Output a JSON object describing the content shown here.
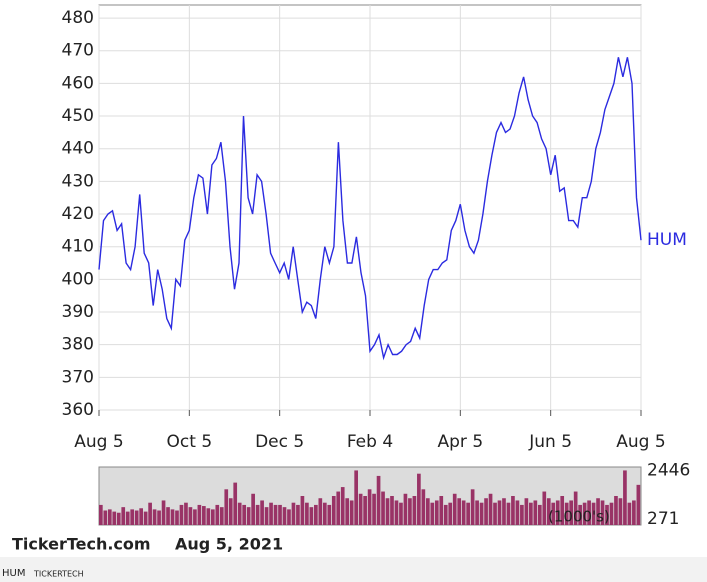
{
  "chart_data": [
    {
      "type": "line",
      "series": [
        {
          "name": "HUM",
          "color": "#2b2be0",
          "values": [
            403,
            418,
            420,
            421,
            415,
            417,
            405,
            403,
            410,
            426,
            408,
            405,
            392,
            403,
            397,
            388,
            385,
            400,
            398,
            412,
            415,
            425,
            432,
            431,
            420,
            435,
            437,
            442,
            430,
            410,
            397,
            405,
            450,
            425,
            420,
            432,
            430,
            420,
            408,
            405,
            402,
            405,
            400,
            410,
            400,
            390,
            393,
            392,
            388,
            400,
            410,
            405,
            410,
            442,
            418,
            405,
            405,
            413,
            402,
            395,
            378,
            380,
            383,
            376,
            380,
            377,
            377,
            378,
            380,
            381,
            385,
            382,
            392,
            400,
            403,
            403,
            405,
            406,
            415,
            418,
            423,
            415,
            410,
            408,
            412,
            420,
            430,
            438,
            445,
            448,
            445,
            446,
            450,
            457,
            462,
            455,
            450,
            448,
            443,
            440,
            432,
            438,
            427,
            428,
            418,
            418,
            416,
            425,
            425,
            430,
            440,
            445,
            452,
            456,
            460,
            468,
            462,
            468,
            460,
            425,
            412
          ]
        }
      ],
      "xlim": [
        0,
        120
      ],
      "xticks": [
        {
          "value": 0,
          "label": "Aug 5"
        },
        {
          "value": 20,
          "label": "Oct 5"
        },
        {
          "value": 40,
          "label": "Dec 5"
        },
        {
          "value": 60,
          "label": "Feb 4"
        },
        {
          "value": 80,
          "label": "Apr 5"
        },
        {
          "value": 100,
          "label": "Jun 5"
        },
        {
          "value": 120,
          "label": "Aug 5"
        }
      ],
      "ylim": [
        360,
        484
      ],
      "yticks": [
        360,
        370,
        380,
        390,
        400,
        410,
        420,
        430,
        440,
        450,
        460,
        470,
        480
      ],
      "grid": true
    },
    {
      "type": "bar",
      "axis_label": "(1000's)",
      "color": "#993366",
      "values": [
        900,
        650,
        700,
        600,
        550,
        800,
        600,
        700,
        650,
        750,
        600,
        1000,
        700,
        650,
        1100,
        800,
        700,
        650,
        900,
        1000,
        800,
        700,
        900,
        850,
        750,
        700,
        900,
        800,
        1600,
        1200,
        1900,
        1000,
        900,
        800,
        1400,
        900,
        1100,
        800,
        1000,
        900,
        900,
        800,
        700,
        1000,
        900,
        1300,
        1000,
        800,
        900,
        1200,
        1000,
        900,
        1300,
        1500,
        1700,
        1200,
        1100,
        2446,
        1400,
        1300,
        1600,
        1400,
        2200,
        1500,
        1200,
        1300,
        1100,
        1000,
        1400,
        1200,
        1300,
        2300,
        1600,
        1200,
        1000,
        1100,
        1300,
        900,
        1000,
        1400,
        1200,
        1100,
        1000,
        1600,
        1100,
        1000,
        1200,
        1400,
        1000,
        1100,
        1200,
        1000,
        1300,
        1100,
        900,
        1200,
        1000,
        1100,
        900,
        1500,
        1200,
        1000,
        1100,
        1300,
        1000,
        1100,
        1500,
        900,
        1000,
        1100,
        1000,
        1200,
        1100,
        900,
        1000,
        1300,
        1200,
        2446,
        1000,
        1100,
        1800
      ],
      "xlim": [
        0,
        120
      ],
      "ylim": [
        0,
        2600
      ],
      "yticks": [
        271,
        2446
      ]
    }
  ],
  "footer": {
    "credit": "TickerTech.com",
    "date": "Aug 5, 2021",
    "symbol": "HUM",
    "brand": "TICKERTECH"
  }
}
